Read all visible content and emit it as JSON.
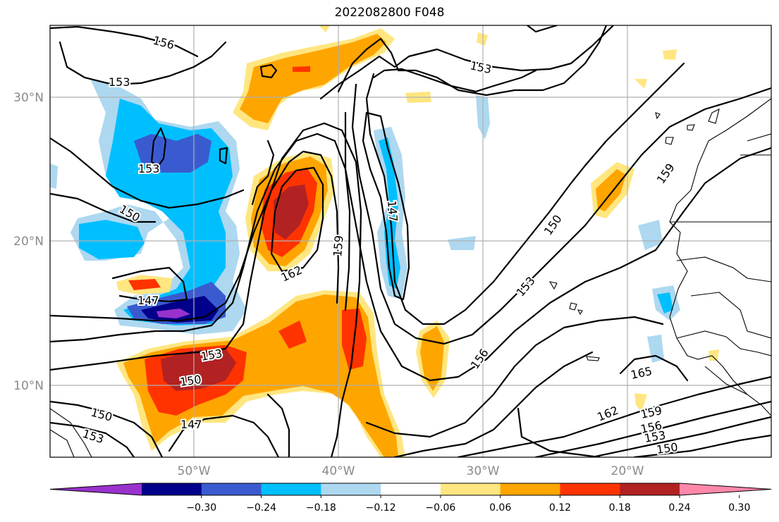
{
  "title": "2022082800 F048",
  "axes": {
    "lon_ticks": [
      "50°W",
      "40°W",
      "30°W",
      "20°W"
    ],
    "lat_ticks": [
      "30°N",
      "20°N",
      "10°N"
    ]
  },
  "colorbar": {
    "colors": [
      "#9932cc",
      "#00008b",
      "#3a5bd0",
      "#00bfff",
      "#add8f0",
      "#ffffff",
      "#ffe680",
      "#ffa500",
      "#ff3300",
      "#b22222",
      "#ff88aa"
    ],
    "ticks": [
      "−0.30",
      "−0.24",
      "−0.18",
      "−0.12",
      "−0.06",
      "0.06",
      "0.12",
      "0.18",
      "0.24",
      "0.30"
    ]
  },
  "contour_labels": [
    {
      "text": "156"
    },
    {
      "text": "153"
    },
    {
      "text": "153"
    },
    {
      "text": "153"
    },
    {
      "text": "150"
    },
    {
      "text": "147"
    },
    {
      "text": "162"
    },
    {
      "text": "159"
    },
    {
      "text": "147"
    },
    {
      "text": "150"
    },
    {
      "text": "153"
    },
    {
      "text": "159"
    },
    {
      "text": "156"
    },
    {
      "text": "153"
    },
    {
      "text": "150"
    },
    {
      "text": "150"
    },
    {
      "text": "153"
    },
    {
      "text": "147"
    },
    {
      "text": "162"
    },
    {
      "text": "165"
    },
    {
      "text": "159"
    },
    {
      "text": "156"
    },
    {
      "text": "153"
    },
    {
      "text": "150"
    }
  ]
}
